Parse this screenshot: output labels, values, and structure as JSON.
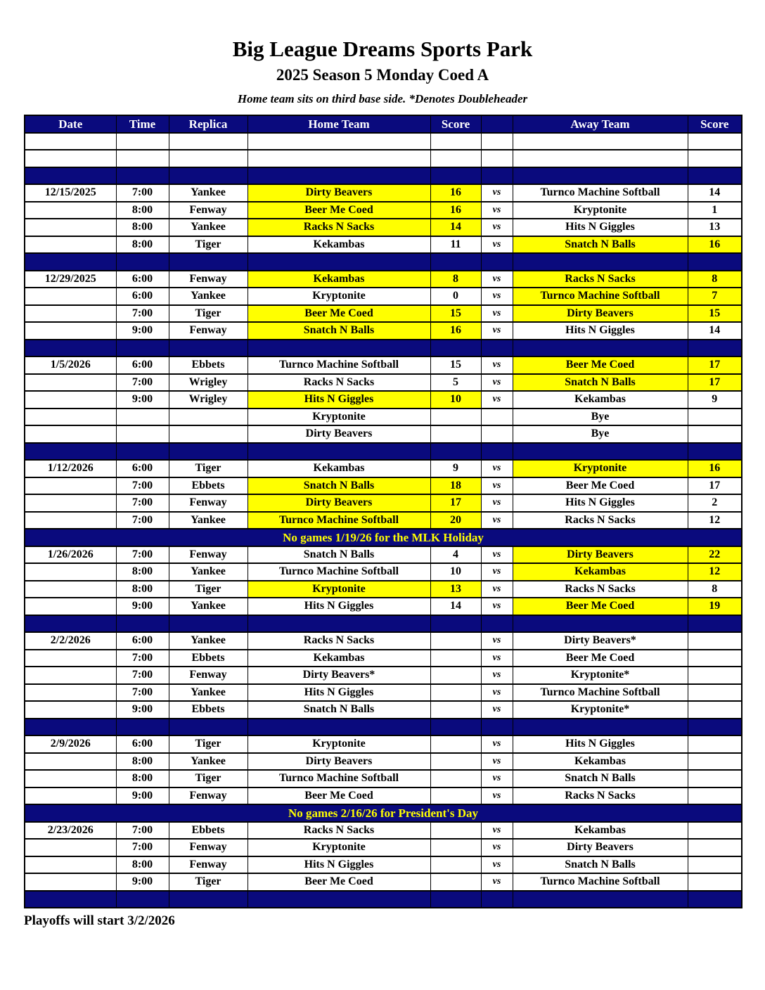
{
  "page": {
    "title": "Big League Dreams Sports Park",
    "subtitle": "2025 Season 5 Monday Coed A",
    "tagline": "Home team sits on third base side.  *Denotes Doubleheader",
    "footer": "Playoffs will start 3/2/2026"
  },
  "colors": {
    "navy": "#0a0a7d",
    "highlight_yellow": "#ffff00",
    "header_text": "#ffffff",
    "notice_text": "#ffff00"
  },
  "table": {
    "headers": [
      "Date",
      "Time",
      "Replica",
      "Home Team",
      "Score",
      "",
      "Away Team",
      "Score"
    ],
    "rows": [
      {
        "type": "empty"
      },
      {
        "type": "empty"
      },
      {
        "type": "spacer"
      },
      {
        "type": "game",
        "date": "12/15/2025",
        "time": "7:00",
        "replica": "Yankee",
        "home": "Dirty Beavers",
        "home_score": "16",
        "home_hl": true,
        "vs": "vs",
        "away": "Turnco Machine Softball",
        "away_score": "14",
        "away_hl": false
      },
      {
        "type": "game",
        "date": "",
        "time": "8:00",
        "replica": "Fenway",
        "home": "Beer Me Coed",
        "home_score": "16",
        "home_hl": true,
        "vs": "vs",
        "away": "Kryptonite",
        "away_score": "1",
        "away_hl": false
      },
      {
        "type": "game",
        "date": "",
        "time": "8:00",
        "replica": "Yankee",
        "home": "Racks N Sacks",
        "home_score": "14",
        "home_hl": true,
        "vs": "vs",
        "away": "Hits N Giggles",
        "away_score": "13",
        "away_hl": false
      },
      {
        "type": "game",
        "date": "",
        "time": "8:00",
        "replica": "Tiger",
        "home": "Kekambas",
        "home_score": "11",
        "home_hl": false,
        "vs": "vs",
        "away": "Snatch N Balls",
        "away_score": "16",
        "away_hl": true
      },
      {
        "type": "spacer"
      },
      {
        "type": "game",
        "date": "12/29/2025",
        "time": "6:00",
        "replica": "Fenway",
        "home": "Kekambas",
        "home_score": "8",
        "home_hl": true,
        "vs": "vs",
        "away": "Racks N Sacks",
        "away_score": "8",
        "away_hl": true
      },
      {
        "type": "game",
        "date": "",
        "time": "6:00",
        "replica": "Yankee",
        "home": "Kryptonite",
        "home_score": "0",
        "home_hl": false,
        "vs": "vs",
        "away": "Turnco Machine Softball",
        "away_score": "7",
        "away_hl": true
      },
      {
        "type": "game",
        "date": "",
        "time": "7:00",
        "replica": "Tiger",
        "home": "Beer Me Coed",
        "home_score": "15",
        "home_hl": true,
        "vs": "vs",
        "away": "Dirty Beavers",
        "away_score": "15",
        "away_hl": true
      },
      {
        "type": "game",
        "date": "",
        "time": "9:00",
        "replica": "Fenway",
        "home": "Snatch N Balls",
        "home_score": "16",
        "home_hl": true,
        "vs": "vs",
        "away": "Hits N Giggles",
        "away_score": "14",
        "away_hl": false
      },
      {
        "type": "spacer"
      },
      {
        "type": "game",
        "date": "1/5/2026",
        "time": "6:00",
        "replica": "Ebbets",
        "home": "Turnco Machine Softball",
        "home_score": "15",
        "home_hl": false,
        "vs": "vs",
        "away": "Beer Me Coed",
        "away_score": "17",
        "away_hl": true
      },
      {
        "type": "game",
        "date": "",
        "time": "7:00",
        "replica": "Wrigley",
        "home": "Racks N Sacks",
        "home_score": "5",
        "home_hl": false,
        "vs": "vs",
        "away": "Snatch N Balls",
        "away_score": "17",
        "away_hl": true
      },
      {
        "type": "game",
        "date": "",
        "time": "9:00",
        "replica": "Wrigley",
        "home": "Hits N Giggles",
        "home_score": "10",
        "home_hl": true,
        "vs": "vs",
        "away": "Kekambas",
        "away_score": "9",
        "away_hl": false
      },
      {
        "type": "game",
        "date": "",
        "time": "",
        "replica": "",
        "home": "Kryptonite",
        "home_score": "",
        "home_hl": false,
        "vs": "",
        "away": "Bye",
        "away_score": "",
        "away_hl": false
      },
      {
        "type": "game",
        "date": "",
        "time": "",
        "replica": "",
        "home": "Dirty Beavers",
        "home_score": "",
        "home_hl": false,
        "vs": "",
        "away": "Bye",
        "away_score": "",
        "away_hl": false
      },
      {
        "type": "spacer"
      },
      {
        "type": "game",
        "date": "1/12/2026",
        "time": "6:00",
        "replica": "Tiger",
        "home": "Kekambas",
        "home_score": "9",
        "home_hl": false,
        "vs": "vs",
        "away": "Kryptonite",
        "away_score": "16",
        "away_hl": true
      },
      {
        "type": "game",
        "date": "",
        "time": "7:00",
        "replica": "Ebbets",
        "home": "Snatch N Balls",
        "home_score": "18",
        "home_hl": true,
        "vs": "vs",
        "away": "Beer Me Coed",
        "away_score": "17",
        "away_hl": false
      },
      {
        "type": "game",
        "date": "",
        "time": "7:00",
        "replica": "Fenway",
        "home": "Dirty Beavers",
        "home_score": "17",
        "home_hl": true,
        "vs": "vs",
        "away": "Hits N Giggles",
        "away_score": "2",
        "away_hl": false
      },
      {
        "type": "game",
        "date": "",
        "time": "7:00",
        "replica": "Yankee",
        "home": "Turnco Machine Softball",
        "home_score": "20",
        "home_hl": true,
        "vs": "vs",
        "away": "Racks N Sacks",
        "away_score": "12",
        "away_hl": false
      },
      {
        "type": "notice",
        "text": "No games 1/19/26 for the MLK Holiday"
      },
      {
        "type": "game",
        "date": "1/26/2026",
        "time": "7:00",
        "replica": "Fenway",
        "home": "Snatch N Balls",
        "home_score": "4",
        "home_hl": false,
        "vs": "vs",
        "away": "Dirty Beavers",
        "away_score": "22",
        "away_hl": true
      },
      {
        "type": "game",
        "date": "",
        "time": "8:00",
        "replica": "Yankee",
        "home": "Turnco Machine Softball",
        "home_score": "10",
        "home_hl": false,
        "vs": "vs",
        "away": "Kekambas",
        "away_score": "12",
        "away_hl": true
      },
      {
        "type": "game",
        "date": "",
        "time": "8:00",
        "replica": "Tiger",
        "home": "Kryptonite",
        "home_score": "13",
        "home_hl": true,
        "vs": "vs",
        "away": "Racks N Sacks",
        "away_score": "8",
        "away_hl": false
      },
      {
        "type": "game",
        "date": "",
        "time": "9:00",
        "replica": "Yankee",
        "home": "Hits N Giggles",
        "home_score": "14",
        "home_hl": false,
        "vs": "vs",
        "away": "Beer Me Coed",
        "away_score": "19",
        "away_hl": true
      },
      {
        "type": "spacer"
      },
      {
        "type": "game",
        "date": "2/2/2026",
        "time": "6:00",
        "replica": "Yankee",
        "home": "Racks N Sacks",
        "home_score": "",
        "home_hl": false,
        "vs": "vs",
        "away": "Dirty Beavers*",
        "away_score": "",
        "away_hl": false
      },
      {
        "type": "game",
        "date": "",
        "time": "7:00",
        "replica": "Ebbets",
        "home": "Kekambas",
        "home_score": "",
        "home_hl": false,
        "vs": "vs",
        "away": "Beer Me Coed",
        "away_score": "",
        "away_hl": false
      },
      {
        "type": "game",
        "date": "",
        "time": "7:00",
        "replica": "Fenway",
        "home": "Dirty Beavers*",
        "home_score": "",
        "home_hl": false,
        "vs": "vs",
        "away": "Kryptonite*",
        "away_score": "",
        "away_hl": false
      },
      {
        "type": "game",
        "date": "",
        "time": "7:00",
        "replica": "Yankee",
        "home": "Hits N Giggles",
        "home_score": "",
        "home_hl": false,
        "vs": "vs",
        "away": "Turnco Machine Softball",
        "away_score": "",
        "away_hl": false
      },
      {
        "type": "game",
        "date": "",
        "time": "9:00",
        "replica": "Ebbets",
        "home": "Snatch N Balls",
        "home_score": "",
        "home_hl": false,
        "vs": "vs",
        "away": "Kryptonite*",
        "away_score": "",
        "away_hl": false
      },
      {
        "type": "spacer"
      },
      {
        "type": "game",
        "date": "2/9/2026",
        "time": "6:00",
        "replica": "Tiger",
        "home": "Kryptonite",
        "home_score": "",
        "home_hl": false,
        "vs": "vs",
        "away": "Hits N Giggles",
        "away_score": "",
        "away_hl": false
      },
      {
        "type": "game",
        "date": "",
        "time": "8:00",
        "replica": "Yankee",
        "home": "Dirty Beavers",
        "home_score": "",
        "home_hl": false,
        "vs": "vs",
        "away": "Kekambas",
        "away_score": "",
        "away_hl": false
      },
      {
        "type": "game",
        "date": "",
        "time": "8:00",
        "replica": "Tiger",
        "home": "Turnco Machine Softball",
        "home_score": "",
        "home_hl": false,
        "vs": "vs",
        "away": "Snatch N Balls",
        "away_score": "",
        "away_hl": false
      },
      {
        "type": "game",
        "date": "",
        "time": "9:00",
        "replica": "Fenway",
        "home": "Beer Me Coed",
        "home_score": "",
        "home_hl": false,
        "vs": "vs",
        "away": "Racks N Sacks",
        "away_score": "",
        "away_hl": false
      },
      {
        "type": "notice",
        "text": "No games 2/16/26 for President's Day"
      },
      {
        "type": "game",
        "date": "2/23/2026",
        "time": "7:00",
        "replica": "Ebbets",
        "home": "Racks N Sacks",
        "home_score": "",
        "home_hl": false,
        "vs": "vs",
        "away": "Kekambas",
        "away_score": "",
        "away_hl": false
      },
      {
        "type": "game",
        "date": "",
        "time": "7:00",
        "replica": "Fenway",
        "home": "Kryptonite",
        "home_score": "",
        "home_hl": false,
        "vs": "vs",
        "away": "Dirty Beavers",
        "away_score": "",
        "away_hl": false
      },
      {
        "type": "game",
        "date": "",
        "time": "8:00",
        "replica": "Fenway",
        "home": "Hits N Giggles",
        "home_score": "",
        "home_hl": false,
        "vs": "vs",
        "away": "Snatch N Balls",
        "away_score": "",
        "away_hl": false
      },
      {
        "type": "game",
        "date": "",
        "time": "9:00",
        "replica": "Tiger",
        "home": "Beer Me Coed",
        "home_score": "",
        "home_hl": false,
        "vs": "vs",
        "away": "Turnco Machine Softball",
        "away_score": "",
        "away_hl": false
      },
      {
        "type": "spacer"
      }
    ]
  }
}
